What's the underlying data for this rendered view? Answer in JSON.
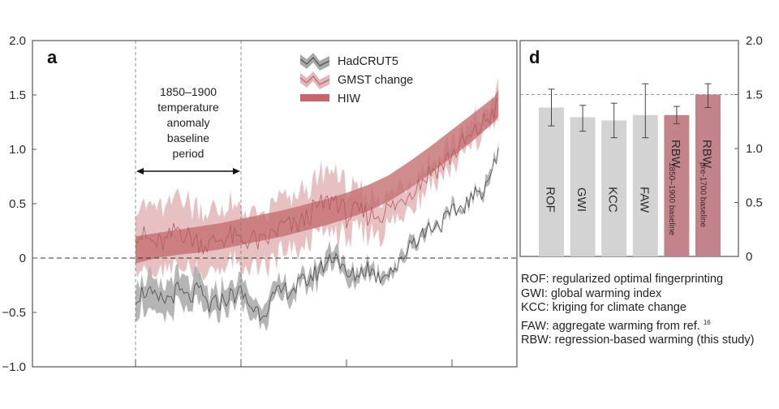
{
  "chart_data": [
    {
      "panel": "a",
      "type": "line",
      "title": "",
      "xlabel": "",
      "ylabel": "",
      "xlim": [
        1750,
        2025
      ],
      "ylim": [
        -1.0,
        2.0
      ],
      "yticks": [
        2.0,
        1.5,
        1.0,
        0.5,
        0,
        -0.5,
        -1.0
      ],
      "ytick_labels": [
        "2.0",
        "1.5",
        "1.0",
        "0.5",
        "0",
        "−0.5",
        "−1.0"
      ],
      "xticks": [
        1850,
        1900,
        1950,
        2000
      ],
      "xtick_labels": [
        "",
        "",
        "",
        ""
      ],
      "reference_lines": {
        "y": 0,
        "x": [
          1850,
          1900
        ],
        "style": "dashed"
      },
      "annotation": {
        "lines": [
          "1850–1900",
          "temperature",
          "anomaly",
          "baseline",
          "period"
        ],
        "arrow_from": 1850,
        "arrow_to": 1900,
        "arrow_y": 0.8
      },
      "legend": {
        "placement": "top-right",
        "entries": [
          "HadCRUT5",
          "GMST change",
          "HIW"
        ]
      },
      "series": [
        {
          "name": "HadCRUT5",
          "color": "#555555",
          "band_color": "#a8a8a8",
          "x": [
            1850,
            1855,
            1860,
            1865,
            1870,
            1875,
            1880,
            1885,
            1890,
            1895,
            1900,
            1905,
            1910,
            1915,
            1920,
            1925,
            1930,
            1935,
            1940,
            1945,
            1950,
            1955,
            1960,
            1965,
            1970,
            1975,
            1980,
            1985,
            1990,
            1995,
            2000,
            2005,
            2010,
            2015,
            2020,
            2022
          ],
          "y": [
            -0.35,
            -0.3,
            -0.4,
            -0.38,
            -0.3,
            -0.38,
            -0.3,
            -0.45,
            -0.4,
            -0.35,
            -0.32,
            -0.45,
            -0.5,
            -0.38,
            -0.3,
            -0.28,
            -0.22,
            -0.15,
            -0.05,
            0.05,
            -0.18,
            -0.15,
            -0.08,
            -0.18,
            -0.1,
            -0.08,
            0.15,
            0.2,
            0.3,
            0.32,
            0.4,
            0.48,
            0.55,
            0.65,
            0.85,
            0.95
          ],
          "band_halfwidth": [
            0.15,
            0.15,
            0.14,
            0.14,
            0.13,
            0.13,
            0.12,
            0.12,
            0.11,
            0.11,
            0.1,
            0.1,
            0.09,
            0.09,
            0.08,
            0.08,
            0.08,
            0.07,
            0.08,
            0.09,
            0.07,
            0.06,
            0.05,
            0.05,
            0.04,
            0.04,
            0.04,
            0.04,
            0.03,
            0.03,
            0.03,
            0.03,
            0.03,
            0.03,
            0.03,
            0.03
          ]
        },
        {
          "name": "GMST change",
          "color": "#b05a5e",
          "band_color": "#e3b5b7",
          "x": [
            1850,
            1855,
            1860,
            1865,
            1870,
            1875,
            1880,
            1885,
            1890,
            1895,
            1900,
            1905,
            1910,
            1915,
            1920,
            1925,
            1930,
            1935,
            1940,
            1945,
            1950,
            1955,
            1960,
            1965,
            1970,
            1975,
            1980,
            1985,
            1990,
            1995,
            2000,
            2005,
            2010,
            2015,
            2020,
            2022
          ],
          "y": [
            0.25,
            0.18,
            0.12,
            0.15,
            0.28,
            0.2,
            0.15,
            0.12,
            0.18,
            0.2,
            0.15,
            0.18,
            0.12,
            0.22,
            0.3,
            0.28,
            0.35,
            0.45,
            0.5,
            0.55,
            0.38,
            0.42,
            0.4,
            0.4,
            0.45,
            0.5,
            0.62,
            0.7,
            0.8,
            0.85,
            0.95,
            1.05,
            1.12,
            1.25,
            1.35,
            1.4
          ],
          "band_halfwidth": [
            0.3,
            0.3,
            0.3,
            0.3,
            0.3,
            0.3,
            0.28,
            0.28,
            0.28,
            0.28,
            0.26,
            0.26,
            0.25,
            0.25,
            0.25,
            0.25,
            0.25,
            0.25,
            0.28,
            0.3,
            0.22,
            0.2,
            0.18,
            0.18,
            0.15,
            0.15,
            0.12,
            0.12,
            0.1,
            0.1,
            0.1,
            0.1,
            0.1,
            0.1,
            0.12,
            0.15
          ]
        },
        {
          "name": "HIW",
          "color": "#c46e70",
          "x": [
            1850,
            1860,
            1870,
            1880,
            1890,
            1900,
            1910,
            1920,
            1930,
            1940,
            1950,
            1960,
            1970,
            1980,
            1990,
            2000,
            2010,
            2020,
            2022
          ],
          "y_low": [
            -0.05,
            0.0,
            0.03,
            0.05,
            0.08,
            0.12,
            0.16,
            0.2,
            0.25,
            0.3,
            0.36,
            0.43,
            0.52,
            0.64,
            0.78,
            0.93,
            1.08,
            1.25,
            1.3
          ],
          "y_high": [
            0.2,
            0.23,
            0.26,
            0.29,
            0.32,
            0.36,
            0.4,
            0.44,
            0.49,
            0.54,
            0.6,
            0.67,
            0.76,
            0.89,
            1.03,
            1.18,
            1.33,
            1.48,
            1.55
          ]
        }
      ]
    },
    {
      "panel": "d",
      "type": "bar",
      "title": "",
      "xlabel": "",
      "ylabel": "",
      "ylim": [
        0,
        2.0
      ],
      "yticks": [
        0,
        0.5,
        1.0,
        1.5,
        2.0
      ],
      "ytick_labels": [
        "0",
        "0.5",
        "1.0",
        "1.5",
        "2.0"
      ],
      "yaxis_side": "right",
      "reference_line": {
        "y": 1.5,
        "style": "dashed"
      },
      "categories": [
        "ROF",
        "GWI",
        "KCC",
        "FAW",
        "RBW",
        "RBW"
      ],
      "category_sublabels": [
        "",
        "",
        "",
        "",
        "1850–1900 baseline",
        "pre-1700 baseline"
      ],
      "values": [
        1.38,
        1.29,
        1.26,
        1.31,
        1.31,
        1.5
      ],
      "error_low": [
        1.21,
        1.16,
        1.1,
        1.1,
        1.23,
        1.38
      ],
      "error_high": [
        1.55,
        1.4,
        1.42,
        1.6,
        1.39,
        1.6
      ],
      "colors": [
        "#d3d3d3",
        "#d3d3d3",
        "#d3d3d3",
        "#d3d3d3",
        "#c2848a",
        "#c2848a"
      ]
    }
  ],
  "panel_a": {
    "letter": "a"
  },
  "panel_d": {
    "letter": "d"
  },
  "abbreviations": [
    {
      "text": "ROF: regularized optimal fingerprinting",
      "sup": ""
    },
    {
      "text": "GWI: global warming index",
      "sup": ""
    },
    {
      "text": "KCC: kriging for climate change",
      "sup": ""
    },
    {
      "text": "FAW: aggregate warming from ref.",
      "sup": "16"
    },
    {
      "text": "RBW: regression-based warming (this study)",
      "sup": ""
    }
  ]
}
